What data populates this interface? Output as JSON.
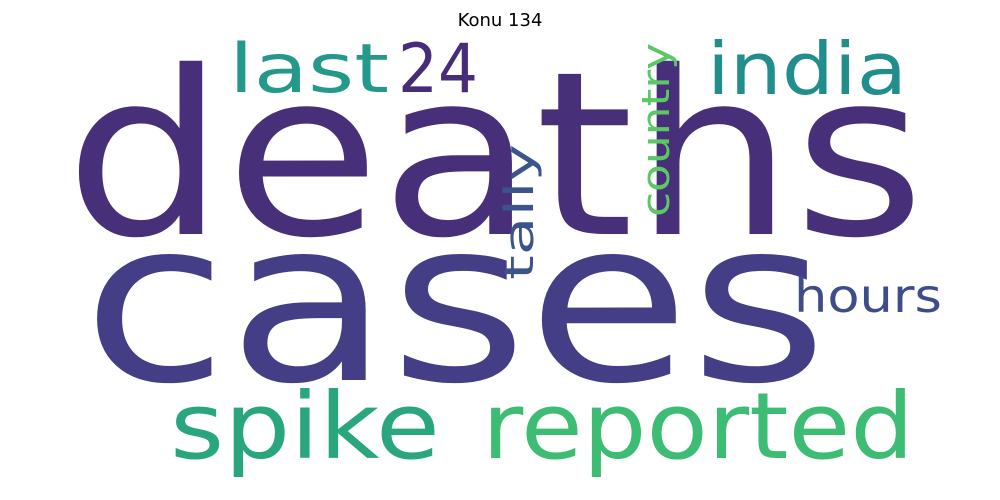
{
  "title": "Konu 134",
  "words": [
    {
      "text": "deaths",
      "color": "#482f7a"
    },
    {
      "text": "cases",
      "color": "#433e85"
    },
    {
      "text": "spike",
      "color": "#29a67e"
    },
    {
      "text": "reported",
      "color": "#3dbc74"
    },
    {
      "text": "last",
      "color": "#24988b"
    },
    {
      "text": "24",
      "color": "#472c7a"
    },
    {
      "text": "india",
      "color": "#218d8d"
    },
    {
      "text": "country",
      "color": "#5ac864"
    },
    {
      "text": "tally",
      "color": "#3b548c"
    },
    {
      "text": "hours",
      "color": "#3e4c8a"
    }
  ]
}
